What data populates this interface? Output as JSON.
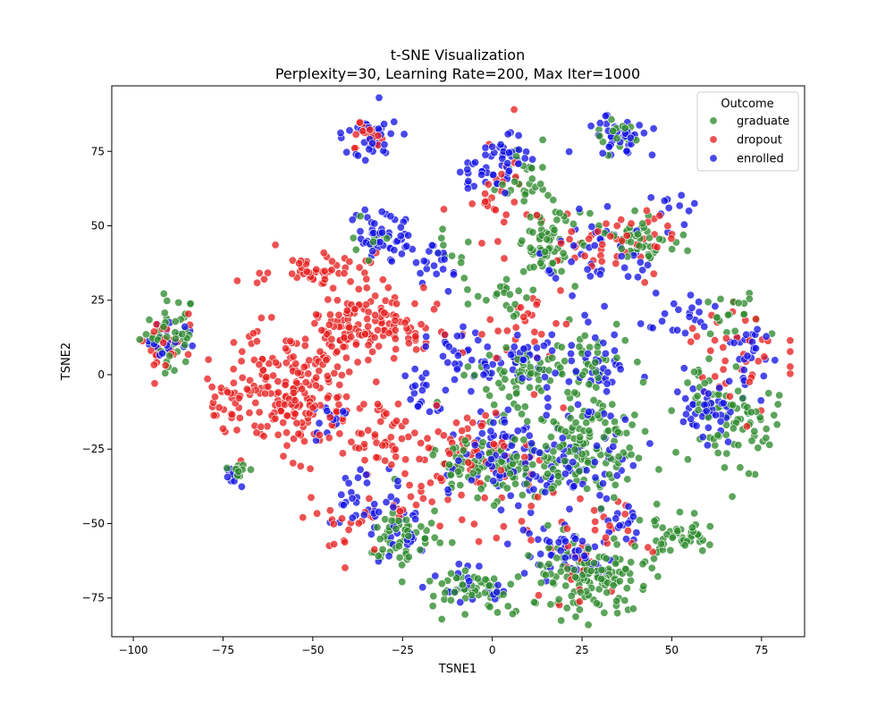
{
  "chart_data": {
    "type": "scatter",
    "title": "t-SNE Visualization",
    "subtitle": "Perplexity=30, Learning Rate=200, Max Iter=1000",
    "xlabel": "TSNE1",
    "ylabel": "TSNE2",
    "xlim": [
      -106,
      87
    ],
    "ylim": [
      -88,
      97
    ],
    "xticks": [
      -100,
      -75,
      -50,
      -25,
      0,
      25,
      50,
      75
    ],
    "yticks": [
      -75,
      -50,
      -25,
      0,
      25,
      50,
      75
    ],
    "grid": false,
    "legend": {
      "title": "Outcome",
      "placement": "top-right"
    },
    "series": [
      {
        "name": "graduate",
        "color": "#2e8b2e",
        "clusters": [
          {
            "cx": -90,
            "cy": 15,
            "sx": 4,
            "sy": 6,
            "n": 45
          },
          {
            "cx": -71,
            "cy": -33,
            "sx": 2,
            "sy": 1.5,
            "n": 12
          },
          {
            "cx": 15,
            "cy": 43,
            "sx": 4,
            "sy": 6,
            "n": 60
          },
          {
            "cx": 40,
            "cy": 46,
            "sx": 5,
            "sy": 4,
            "n": 50
          },
          {
            "cx": 10,
            "cy": 65,
            "sx": 4,
            "sy": 5,
            "n": 30
          },
          {
            "cx": 5,
            "cy": 0,
            "sx": 6,
            "sy": 6,
            "n": 60
          },
          {
            "cx": 25,
            "cy": -25,
            "sx": 9,
            "sy": 9,
            "n": 130
          },
          {
            "cx": 5,
            "cy": -30,
            "sx": 8,
            "sy": 6,
            "n": 70
          },
          {
            "cx": -10,
            "cy": -30,
            "sx": 6,
            "sy": 4,
            "n": 40
          },
          {
            "cx": -25,
            "cy": -55,
            "sx": 5,
            "sy": 5,
            "n": 60
          },
          {
            "cx": -5,
            "cy": -72,
            "sx": 8,
            "sy": 3,
            "n": 60
          },
          {
            "cx": 28,
            "cy": -68,
            "sx": 8,
            "sy": 6,
            "n": 130
          },
          {
            "cx": 52,
            "cy": -54,
            "sx": 4,
            "sy": 3,
            "n": 50
          },
          {
            "cx": 70,
            "cy": -20,
            "sx": 6,
            "sy": 8,
            "n": 50
          },
          {
            "cx": 62,
            "cy": -8,
            "sx": 6,
            "sy": 6,
            "n": 30
          },
          {
            "cx": 35,
            "cy": 80,
            "sx": 3,
            "sy": 3,
            "n": 20
          },
          {
            "cx": 68,
            "cy": 20,
            "sx": 6,
            "sy": 5,
            "n": 20
          },
          {
            "cx": -12,
            "cy": 42,
            "sx": 4,
            "sy": 4,
            "n": 10
          },
          {
            "cx": -35,
            "cy": 45,
            "sx": 3,
            "sy": 3,
            "n": 10
          },
          {
            "cx": 28,
            "cy": 5,
            "sx": 6,
            "sy": 6,
            "n": 35
          },
          {
            "cx": 5,
            "cy": 25,
            "sx": 5,
            "sy": 4,
            "n": 20
          }
        ]
      },
      {
        "name": "dropout",
        "color": "#e82020",
        "clusters": [
          {
            "cx": -55,
            "cy": -5,
            "sx": 8,
            "sy": 10,
            "n": 200
          },
          {
            "cx": -50,
            "cy": 35,
            "sx": 7,
            "sy": 3,
            "n": 50
          },
          {
            "cx": -40,
            "cy": 17,
            "sx": 5,
            "sy": 7,
            "n": 70
          },
          {
            "cx": -25,
            "cy": 15,
            "sx": 6,
            "sy": 5,
            "n": 60
          },
          {
            "cx": -30,
            "cy": -20,
            "sx": 5,
            "sy": 7,
            "n": 50
          },
          {
            "cx": -73,
            "cy": -10,
            "sx": 3,
            "sy": 4,
            "n": 25
          },
          {
            "cx": -35,
            "cy": 80,
            "sx": 3,
            "sy": 3,
            "n": 20
          },
          {
            "cx": -90,
            "cy": 10,
            "sx": 4,
            "sy": 6,
            "n": 25
          },
          {
            "cx": -5,
            "cy": -25,
            "sx": 10,
            "sy": 8,
            "n": 60
          },
          {
            "cx": 25,
            "cy": -55,
            "sx": 8,
            "sy": 8,
            "n": 40
          },
          {
            "cx": 35,
            "cy": 45,
            "sx": 8,
            "sy": 7,
            "n": 45
          },
          {
            "cx": 70,
            "cy": 5,
            "sx": 8,
            "sy": 8,
            "n": 40
          },
          {
            "cx": 0,
            "cy": 60,
            "sx": 6,
            "sy": 10,
            "n": 30
          },
          {
            "cx": -15,
            "cy": -45,
            "sx": 10,
            "sy": 8,
            "n": 30
          },
          {
            "cx": -40,
            "cy": -50,
            "sx": 5,
            "sy": 5,
            "n": 20
          },
          {
            "cx": 10,
            "cy": 15,
            "sx": 10,
            "sy": 10,
            "n": 30
          }
        ]
      },
      {
        "name": "enrolled",
        "color": "#1515e6",
        "clusters": [
          {
            "cx": -33,
            "cy": 80,
            "sx": 4,
            "sy": 4,
            "n": 40
          },
          {
            "cx": 35,
            "cy": 80,
            "sx": 4,
            "sy": 3,
            "n": 40
          },
          {
            "cx": -30,
            "cy": 46,
            "sx": 4,
            "sy": 4,
            "n": 50
          },
          {
            "cx": 3,
            "cy": 72,
            "sx": 4,
            "sy": 5,
            "n": 40
          },
          {
            "cx": -5,
            "cy": 67,
            "sx": 3,
            "sy": 3,
            "n": 15
          },
          {
            "cx": -90,
            "cy": 12,
            "sx": 3,
            "sy": 4,
            "n": 20
          },
          {
            "cx": -72,
            "cy": -33,
            "sx": 2,
            "sy": 1.5,
            "n": 10
          },
          {
            "cx": -15,
            "cy": 38,
            "sx": 3,
            "sy": 4,
            "n": 20
          },
          {
            "cx": 5,
            "cy": 5,
            "sx": 8,
            "sy": 5,
            "n": 50
          },
          {
            "cx": 20,
            "cy": -30,
            "sx": 10,
            "sy": 10,
            "n": 80
          },
          {
            "cx": 0,
            "cy": -25,
            "sx": 7,
            "sy": 8,
            "n": 50
          },
          {
            "cx": -20,
            "cy": -5,
            "sx": 3,
            "sy": 4,
            "n": 20
          },
          {
            "cx": -45,
            "cy": -15,
            "sx": 3,
            "sy": 3,
            "n": 15
          },
          {
            "cx": -35,
            "cy": -45,
            "sx": 5,
            "sy": 5,
            "n": 30
          },
          {
            "cx": -25,
            "cy": -52,
            "sx": 4,
            "sy": 6,
            "n": 25
          },
          {
            "cx": 20,
            "cy": -60,
            "sx": 8,
            "sy": 5,
            "n": 50
          },
          {
            "cx": 37,
            "cy": -50,
            "sx": 3,
            "sy": 3,
            "n": 15
          },
          {
            "cx": 62,
            "cy": -10,
            "sx": 6,
            "sy": 5,
            "n": 50
          },
          {
            "cx": 72,
            "cy": 10,
            "sx": 3,
            "sy": 3,
            "n": 20
          },
          {
            "cx": 50,
            "cy": 20,
            "sx": 4,
            "sy": 4,
            "n": 20
          },
          {
            "cx": 30,
            "cy": 40,
            "sx": 8,
            "sy": 7,
            "n": 40
          },
          {
            "cx": 30,
            "cy": 5,
            "sx": 6,
            "sy": 8,
            "n": 40
          },
          {
            "cx": -5,
            "cy": -72,
            "sx": 6,
            "sy": 3,
            "n": 20
          },
          {
            "cx": -10,
            "cy": 10,
            "sx": 4,
            "sy": 4,
            "n": 20
          },
          {
            "cx": 50,
            "cy": 55,
            "sx": 3,
            "sy": 3,
            "n": 10
          }
        ]
      }
    ]
  }
}
